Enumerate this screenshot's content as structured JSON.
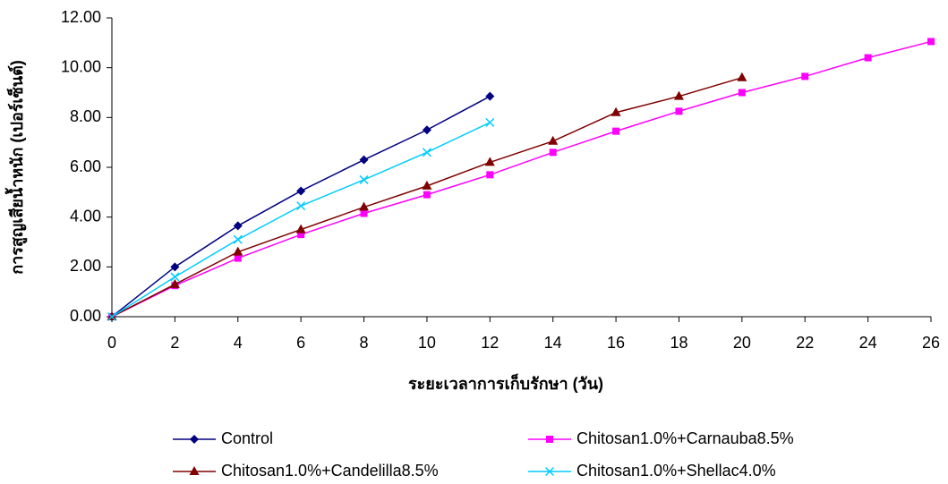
{
  "chart_data": {
    "type": "line",
    "xlabel": "ระยะเวลาการเก็บรักษา (วัน)",
    "ylabel": "การสูญเสียน้ำหนัก (เปอร์เซ็นต์)",
    "xlim": [
      0,
      26
    ],
    "xticks": [
      0,
      2,
      4,
      6,
      8,
      10,
      12,
      14,
      16,
      18,
      20,
      22,
      24,
      26
    ],
    "ylim": [
      0,
      12
    ],
    "yticks": [
      {
        "value": 0,
        "label": "0.00"
      },
      {
        "value": 2,
        "label": "2.00"
      },
      {
        "value": 4,
        "label": "4.00"
      },
      {
        "value": 6,
        "label": "6.00"
      },
      {
        "value": 8,
        "label": "8.00"
      },
      {
        "value": 10,
        "label": "10.00"
      },
      {
        "value": 12,
        "label": "12.00"
      }
    ],
    "grid": false,
    "legend": "bottom",
    "series": [
      {
        "name": "Control",
        "color": "#000080",
        "marker": "diamond",
        "x": [
          0,
          2,
          4,
          6,
          8,
          10,
          12
        ],
        "values": [
          0,
          2.0,
          3.65,
          5.05,
          6.3,
          7.5,
          8.85
        ]
      },
      {
        "name": "Chitosan1.0%+Carnauba8.5%",
        "color": "#ff00ff",
        "marker": "square",
        "x": [
          0,
          2,
          4,
          6,
          8,
          10,
          12,
          14,
          16,
          18,
          20,
          22,
          24,
          26
        ],
        "values": [
          0,
          1.25,
          2.35,
          3.3,
          4.15,
          4.9,
          5.7,
          6.6,
          7.45,
          8.25,
          9.0,
          9.65,
          10.4,
          11.05
        ]
      },
      {
        "name": "Chitosan1.0%+Candelilla8.5%",
        "color": "#800000",
        "marker": "triangle",
        "x": [
          0,
          2,
          4,
          6,
          8,
          10,
          12,
          14,
          16,
          18,
          20
        ],
        "values": [
          0,
          1.3,
          2.6,
          3.5,
          4.4,
          5.25,
          6.2,
          7.05,
          8.2,
          8.85,
          9.6
        ]
      },
      {
        "name": "Chitosan1.0%+Shellac4.0%",
        "color": "#00ccff",
        "marker": "x",
        "x": [
          0,
          2,
          4,
          6,
          8,
          10,
          12
        ],
        "values": [
          0,
          1.6,
          3.1,
          4.45,
          5.5,
          6.6,
          7.8
        ]
      }
    ]
  }
}
